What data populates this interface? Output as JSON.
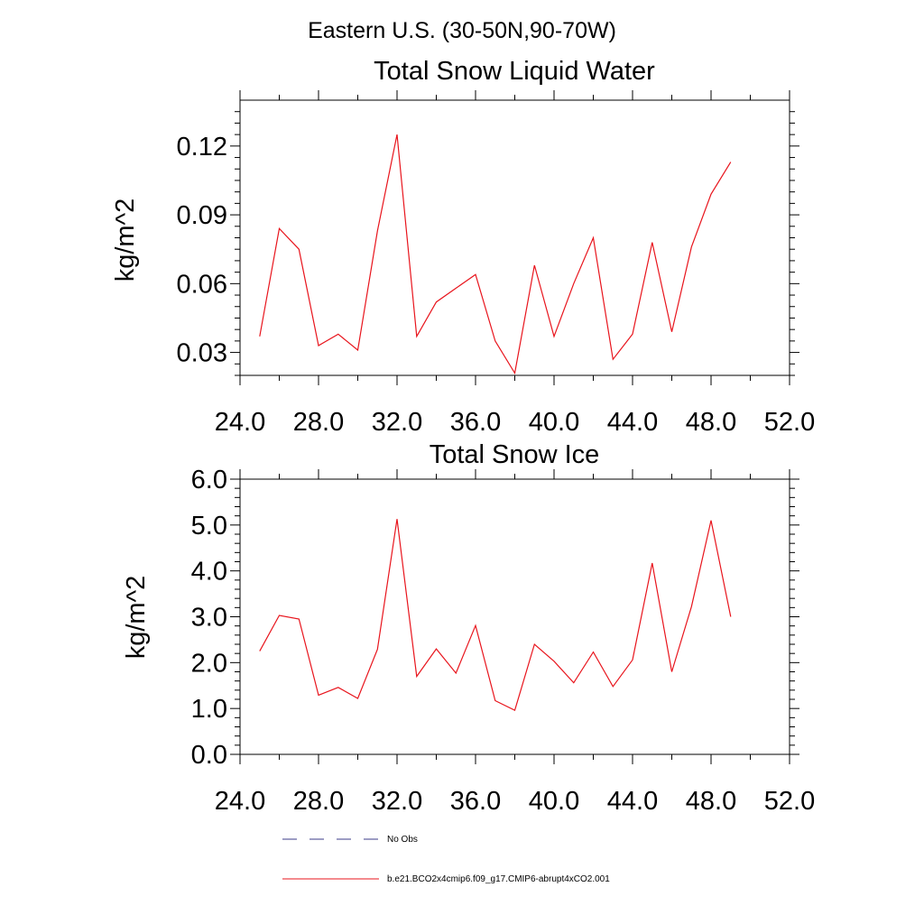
{
  "figure": {
    "suptitle": "Eastern U.S. (30-50N,90-70W)"
  },
  "legend": {
    "items": [
      {
        "label": "No Obs",
        "style": "dashed",
        "color": "#3b3b8a"
      },
      {
        "label": "b.e21.BCO2x4cmip6.f09_g17.CMIP6-abrupt4xCO2.001",
        "style": "solid",
        "color": "#e8141c"
      }
    ]
  },
  "chart_data": [
    {
      "type": "line",
      "title": "Total Snow Liquid Water",
      "xlabel": "",
      "ylabel": "kg/m^2",
      "xlim": [
        24,
        52
      ],
      "ylim": [
        0.02,
        0.14
      ],
      "xticks": [
        24,
        28,
        32,
        36,
        40,
        44,
        48,
        52
      ],
      "xticklabels": [
        "24.0",
        "28.0",
        "32.0",
        "36.0",
        "40.0",
        "44.0",
        "48.0",
        "52.0"
      ],
      "xminor": [
        26,
        30,
        34,
        38,
        42,
        46,
        50
      ],
      "yticks": [
        0.03,
        0.06,
        0.09,
        0.12
      ],
      "yticklabels": [
        "0.03",
        "0.06",
        "0.09",
        "0.12"
      ],
      "yminor": [
        0.02,
        0.025,
        0.035,
        0.04,
        0.045,
        0.05,
        0.055,
        0.065,
        0.07,
        0.075,
        0.08,
        0.085,
        0.095,
        0.1,
        0.105,
        0.11,
        0.115,
        0.125,
        0.13,
        0.135
      ],
      "series": [
        {
          "name": "b.e21.BCO2x4cmip6.f09_g17.CMIP6-abrupt4xCO2.001",
          "color": "#e8141c",
          "x": [
            25,
            26,
            27,
            28,
            29,
            30,
            31,
            32,
            33,
            34,
            35,
            36,
            37,
            38,
            39,
            40,
            41,
            42,
            43,
            44,
            45,
            46,
            47,
            48,
            49
          ],
          "y": [
            0.037,
            0.084,
            0.075,
            0.033,
            0.038,
            0.031,
            0.083,
            0.125,
            0.037,
            0.052,
            0.058,
            0.064,
            0.035,
            0.021,
            0.068,
            0.037,
            0.06,
            0.08,
            0.027,
            0.038,
            0.078,
            0.039,
            0.076,
            0.099,
            0.113
          ]
        }
      ]
    },
    {
      "type": "line",
      "title": "Total Snow Ice",
      "xlabel": "",
      "ylabel": "kg/m^2",
      "xlim": [
        24,
        52
      ],
      "ylim": [
        0,
        6
      ],
      "xticks": [
        24,
        28,
        32,
        36,
        40,
        44,
        48,
        52
      ],
      "xticklabels": [
        "24.0",
        "28.0",
        "32.0",
        "36.0",
        "40.0",
        "44.0",
        "48.0",
        "52.0"
      ],
      "xminor": [
        26,
        30,
        34,
        38,
        42,
        46,
        50
      ],
      "yticks": [
        0,
        1,
        2,
        3,
        4,
        5,
        6
      ],
      "yticklabels": [
        "0.0",
        "1.0",
        "2.0",
        "3.0",
        "4.0",
        "5.0",
        "6.0"
      ],
      "yminor": [
        0.2,
        0.4,
        0.6,
        0.8,
        1.2,
        1.4,
        1.6,
        1.8,
        2.2,
        2.4,
        2.6,
        2.8,
        3.2,
        3.4,
        3.6,
        3.8,
        4.2,
        4.4,
        4.6,
        4.8,
        5.2,
        5.4,
        5.6,
        5.8
      ],
      "series": [
        {
          "name": "b.e21.BCO2x4cmip6.f09_g17.CMIP6-abrupt4xCO2.001",
          "color": "#e8141c",
          "x": [
            25,
            26,
            27,
            28,
            29,
            30,
            31,
            32,
            33,
            34,
            35,
            36,
            37,
            38,
            39,
            40,
            41,
            42,
            43,
            44,
            45,
            46,
            47,
            48,
            49
          ],
          "y": [
            2.25,
            3.03,
            2.95,
            1.29,
            1.46,
            1.22,
            2.29,
            5.13,
            1.7,
            2.3,
            1.77,
            2.81,
            1.17,
            0.96,
            2.4,
            2.03,
            1.56,
            2.23,
            1.48,
            2.06,
            4.17,
            1.8,
            3.22,
            5.1,
            3.0
          ]
        }
      ]
    }
  ]
}
